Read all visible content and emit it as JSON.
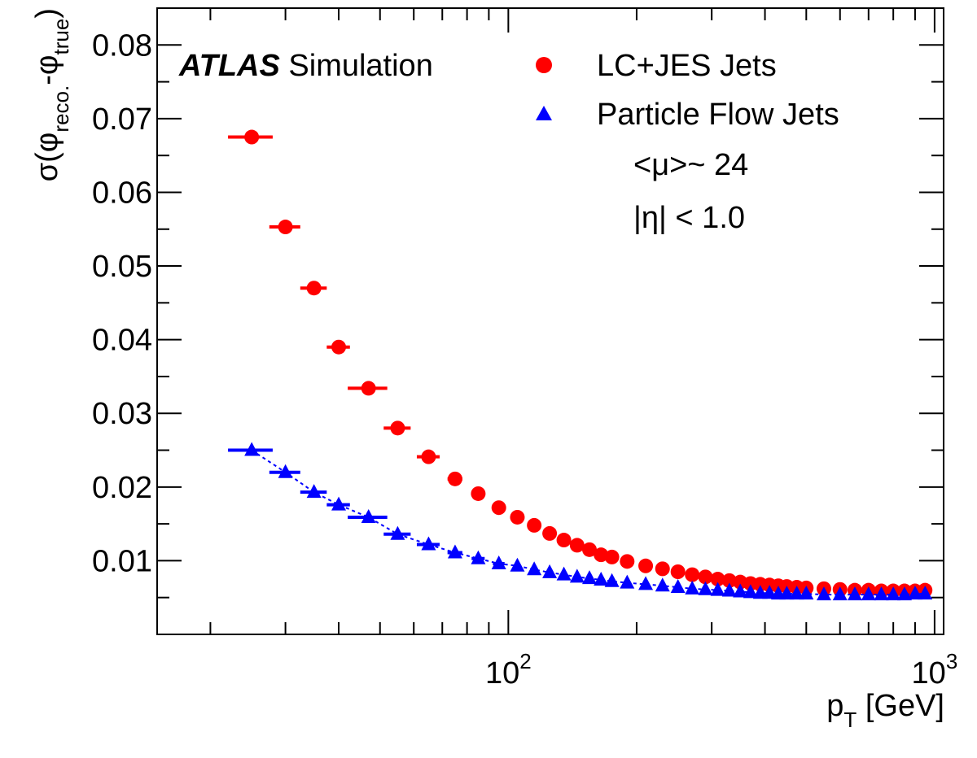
{
  "chart_data": {
    "type": "scatter",
    "x_scale": "log",
    "xlim": [
      15,
      1050
    ],
    "ylim": [
      0.0,
      0.085
    ],
    "xlabel": {
      "main": "p",
      "sub": "T",
      "unit": " [GeV]"
    },
    "ylabel": {
      "prefix": "σ(φ",
      "sub1": "reco.",
      "mid": "-φ",
      "sub2": "true",
      "suffix": ")"
    },
    "y_ticks": [
      "0.01",
      "0.02",
      "0.03",
      "0.04",
      "0.05",
      "0.06",
      "0.07",
      "0.08"
    ],
    "y_tick_values": [
      0.01,
      0.02,
      0.03,
      0.04,
      0.05,
      0.06,
      0.07,
      0.08
    ],
    "x_tick_labels": [
      {
        "value": 100,
        "base": "10",
        "exp": "2"
      },
      {
        "value": 1000,
        "base": "10",
        "exp": "3"
      }
    ],
    "experiment_label": {
      "bold": "ATLAS",
      "rest": " Simulation"
    },
    "annotations": [
      "<μ>~ 24",
      "|η| < 1.0"
    ],
    "grid": false,
    "legend": "top-right",
    "series": [
      {
        "name": "LC+JES Jets",
        "marker": "circle",
        "color": "#ff0000",
        "x": [
          25,
          30,
          35,
          40,
          47,
          55,
          65,
          75,
          85,
          95,
          105,
          115,
          125,
          135,
          145,
          155,
          165,
          175,
          190,
          210,
          230,
          250,
          270,
          290,
          310,
          330,
          350,
          370,
          390,
          410,
          430,
          450,
          475,
          500,
          550,
          600,
          650,
          700,
          750,
          800,
          850,
          900,
          950
        ],
        "y": [
          0.0675,
          0.0553,
          0.047,
          0.039,
          0.0334,
          0.028,
          0.0241,
          0.0211,
          0.0191,
          0.0172,
          0.0159,
          0.0148,
          0.0137,
          0.0128,
          0.0121,
          0.0115,
          0.0108,
          0.0105,
          0.0099,
          0.0093,
          0.0089,
          0.0085,
          0.0081,
          0.0078,
          0.0075,
          0.0073,
          0.0071,
          0.0069,
          0.0068,
          0.0067,
          0.0066,
          0.0065,
          0.0064,
          0.0063,
          0.0062,
          0.0061,
          0.006,
          0.006,
          0.0059,
          0.0059,
          0.0059,
          0.0059,
          0.006
        ],
        "xerr_low": [
          3,
          2.5,
          2.5,
          2.5,
          5,
          4,
          4,
          3,
          3,
          3,
          0,
          0,
          0,
          0,
          0,
          0,
          0,
          0,
          0,
          0,
          0,
          0,
          0,
          0,
          0,
          0,
          0,
          0,
          0,
          0,
          0,
          0,
          0,
          0,
          0,
          0,
          0,
          0,
          0,
          0,
          0,
          0,
          0
        ],
        "xerr_high": [
          3,
          2.5,
          2.5,
          2.5,
          5,
          4,
          4,
          3,
          3,
          3,
          0,
          0,
          0,
          0,
          0,
          0,
          0,
          0,
          0,
          0,
          0,
          0,
          0,
          0,
          0,
          0,
          0,
          0,
          0,
          0,
          0,
          0,
          0,
          0,
          0,
          0,
          0,
          0,
          0,
          0,
          0,
          0,
          0
        ]
      },
      {
        "name": "Particle Flow Jets",
        "marker": "triangle",
        "color": "#0000ff",
        "x": [
          25,
          30,
          35,
          40,
          47,
          55,
          65,
          75,
          85,
          95,
          105,
          115,
          125,
          135,
          145,
          155,
          165,
          175,
          190,
          210,
          230,
          250,
          270,
          290,
          310,
          330,
          350,
          370,
          390,
          410,
          430,
          450,
          475,
          500,
          550,
          600,
          650,
          700,
          750,
          800,
          850,
          900,
          950
        ],
        "y": [
          0.025,
          0.022,
          0.0193,
          0.0176,
          0.0159,
          0.0136,
          0.0122,
          0.0111,
          0.0103,
          0.0096,
          0.0093,
          0.0088,
          0.0084,
          0.0081,
          0.0078,
          0.0076,
          0.0074,
          0.0072,
          0.007,
          0.0068,
          0.0066,
          0.0064,
          0.0062,
          0.0061,
          0.006,
          0.0059,
          0.0058,
          0.0057,
          0.0056,
          0.0056,
          0.0055,
          0.0055,
          0.0055,
          0.0055,
          0.0054,
          0.0054,
          0.0054,
          0.0054,
          0.0054,
          0.0054,
          0.0054,
          0.0055,
          0.0055
        ],
        "xerr_low": [
          3,
          2.5,
          2.5,
          2.5,
          5,
          4,
          4,
          3,
          3,
          3,
          0,
          0,
          0,
          0,
          0,
          0,
          0,
          0,
          0,
          0,
          0,
          0,
          0,
          0,
          0,
          0,
          0,
          0,
          0,
          0,
          0,
          0,
          0,
          0,
          0,
          0,
          0,
          0,
          0,
          0,
          0,
          0,
          0
        ],
        "xerr_high": [
          3,
          2.5,
          2.5,
          2.5,
          5,
          4,
          4,
          3,
          3,
          3,
          0,
          0,
          0,
          0,
          0,
          0,
          0,
          0,
          0,
          0,
          0,
          0,
          0,
          0,
          0,
          0,
          0,
          0,
          0,
          0,
          0,
          0,
          0,
          0,
          0,
          0,
          0,
          0,
          0,
          0,
          0,
          0,
          0
        ]
      }
    ]
  }
}
